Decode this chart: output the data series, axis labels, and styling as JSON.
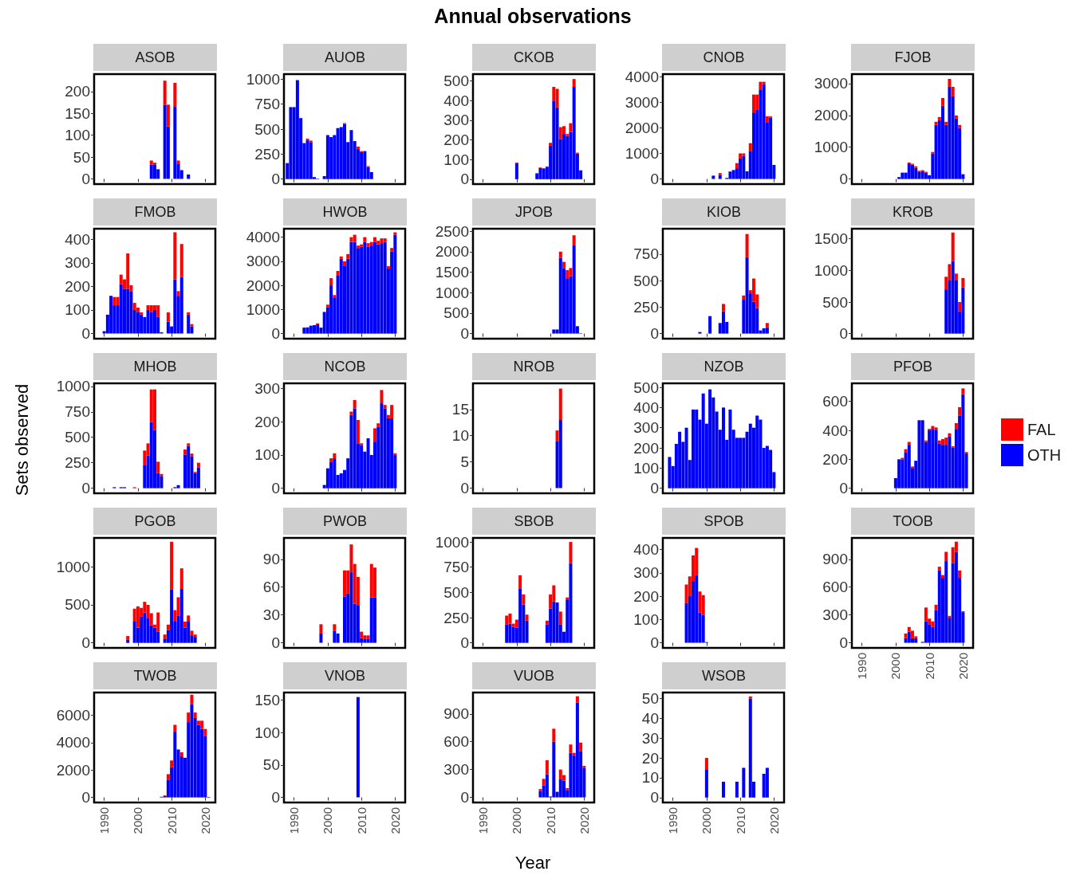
{
  "chart_data": [
    {
      "type": "bar",
      "title": "ASOB",
      "stacked": true,
      "tick_labels": "y",
      "x": [
        2004,
        2005,
        2006,
        2008,
        2009,
        2011,
        2012,
        2013,
        2015
      ],
      "xlim": [
        1987,
        2023
      ],
      "xticks": [
        1990,
        2000,
        2010,
        2020
      ],
      "ylim": [
        -12,
        240
      ],
      "yticks": [
        0,
        50,
        100,
        150,
        200
      ],
      "series": [
        {
          "color": "#0000ff",
          "values": [
            33,
            33,
            22,
            170,
            120,
            165,
            35,
            20,
            10
          ]
        },
        {
          "color": "#ff0000",
          "values": [
            9,
            4,
            null,
            55,
            50,
            55,
            7,
            null,
            null
          ]
        }
      ]
    },
    {
      "type": "bar",
      "title": "AUOB",
      "stacked": true,
      "tick_labels": "y",
      "x": [
        1988,
        1989,
        1990,
        1991,
        1992,
        1993,
        1994,
        1995,
        1996,
        1997,
        1999,
        2000,
        2001,
        2002,
        2003,
        2004,
        2005,
        2006,
        2007,
        2008,
        2009,
        2010,
        2011,
        2012,
        2013
      ],
      "xlim": [
        1987,
        2023
      ],
      "xticks": [
        1990,
        2000,
        2010,
        2020
      ],
      "ylim": [
        -50,
        1050
      ],
      "yticks": [
        0,
        250,
        500,
        750,
        1000
      ],
      "series": [
        {
          "color": "#0000ff",
          "values": [
            160,
            720,
            720,
            990,
            610,
            360,
            390,
            370,
            20,
            5,
            30,
            440,
            420,
            440,
            510,
            520,
            550,
            370,
            490,
            380,
            300,
            270,
            280,
            120,
            70
          ]
        },
        {
          "color": "#ff0000",
          "values": [
            null,
            null,
            null,
            null,
            null,
            null,
            15,
            15,
            null,
            null,
            null,
            null,
            null,
            null,
            null,
            null,
            10,
            null,
            null,
            null,
            25,
            10,
            null,
            10,
            null
          ]
        }
      ]
    },
    {
      "type": "bar",
      "title": "CKOB",
      "stacked": true,
      "tick_labels": "y",
      "annotations": [
        "Annual observations"
      ],
      "x": [
        2000,
        2006,
        2007,
        2008,
        2009,
        2010,
        2011,
        2012,
        2013,
        2014,
        2015,
        2016,
        2017,
        2018,
        2019
      ],
      "xlim": [
        1987,
        2023
      ],
      "xticks": [
        1990,
        2000,
        2010,
        2020
      ],
      "ylim": [
        -25,
        535
      ],
      "yticks": [
        0,
        100,
        200,
        300,
        400,
        500
      ],
      "series": [
        {
          "color": "#0000ff",
          "values": [
            82,
            30,
            57,
            55,
            60,
            170,
            400,
            365,
            205,
            230,
            220,
            240,
            470,
            130,
            45
          ]
        },
        {
          "color": "#ff0000",
          "values": [
            3,
            null,
            3,
            null,
            5,
            15,
            70,
            95,
            60,
            40,
            10,
            45,
            40,
            5,
            null
          ]
        }
      ]
    },
    {
      "type": "bar",
      "title": "CNOB",
      "stacked": true,
      "tick_labels": "y",
      "x": [
        2002,
        2004,
        2006,
        2007,
        2008,
        2009,
        2010,
        2011,
        2012,
        2013,
        2014,
        2015,
        2016,
        2017,
        2018,
        2019,
        2020
      ],
      "xlim": [
        1987,
        2023
      ],
      "xticks": [
        1990,
        2000,
        2010,
        2020
      ],
      "ylim": [
        -200,
        4100
      ],
      "yticks": [
        0,
        1000,
        2000,
        3000,
        4000
      ],
      "series": [
        {
          "color": "#0000ff",
          "values": [
            130,
            150,
            40,
            270,
            350,
            420,
            800,
            900,
            300,
            1100,
            2600,
            2700,
            3500,
            3700,
            2200,
            2400,
            550
          ]
        },
        {
          "color": "#ff0000",
          "values": [
            null,
            80,
            null,
            30,
            null,
            200,
            200,
            100,
            null,
            300,
            700,
            600,
            300,
            100,
            250,
            50,
            null
          ]
        }
      ]
    },
    {
      "type": "bar",
      "title": "FJOB",
      "stacked": true,
      "tick_labels": "y",
      "x": [
        2001,
        2002,
        2003,
        2004,
        2005,
        2006,
        2007,
        2008,
        2009,
        2010,
        2011,
        2012,
        2013,
        2014,
        2015,
        2016,
        2017,
        2018,
        2019,
        2020
      ],
      "xlim": [
        1987,
        2023
      ],
      "xticks": [
        1990,
        2000,
        2010,
        2020
      ],
      "ylim": [
        -160,
        3300
      ],
      "yticks": [
        0,
        1000,
        2000,
        3000
      ],
      "series": [
        {
          "color": "#0000ff",
          "values": [
            60,
            200,
            200,
            490,
            450,
            350,
            220,
            250,
            200,
            120,
            800,
            1700,
            1850,
            2300,
            1700,
            2900,
            2600,
            1900,
            1600,
            150
          ]
        },
        {
          "color": "#ff0000",
          "values": [
            null,
            null,
            null,
            30,
            30,
            50,
            40,
            30,
            30,
            null,
            50,
            100,
            100,
            250,
            100,
            250,
            300,
            100,
            100,
            null
          ]
        }
      ]
    },
    {
      "type": "bar",
      "title": "FMOB",
      "stacked": true,
      "tick_labels": "y",
      "x": [
        1990,
        1991,
        1992,
        1993,
        1994,
        1995,
        1996,
        1997,
        1998,
        1999,
        2000,
        2001,
        2002,
        2003,
        2004,
        2005,
        2006,
        2007,
        2009,
        2010,
        2011,
        2012,
        2013,
        2015,
        2016
      ],
      "xlim": [
        1987,
        2023
      ],
      "xticks": [
        1990,
        2000,
        2010,
        2020
      ],
      "ylim": [
        -22,
        445
      ],
      "yticks": [
        0,
        100,
        200,
        300,
        400
      ],
      "series": [
        {
          "color": "#0000ff",
          "values": [
            10,
            80,
            160,
            120,
            120,
            210,
            190,
            190,
            180,
            100,
            90,
            80,
            70,
            100,
            90,
            100,
            70,
            5,
            50,
            30,
            230,
            160,
            240,
            80,
            30
          ]
        },
        {
          "color": "#ff0000",
          "values": [
            null,
            null,
            null,
            35,
            35,
            40,
            40,
            150,
            25,
            30,
            20,
            10,
            null,
            20,
            30,
            20,
            50,
            null,
            40,
            null,
            200,
            20,
            140,
            10,
            10
          ]
        }
      ]
    },
    {
      "type": "bar",
      "title": "HWOB",
      "stacked": true,
      "tick_labels": "y",
      "x": [
        1993,
        1994,
        1995,
        1996,
        1997,
        1998,
        1999,
        2000,
        2001,
        2002,
        2003,
        2004,
        2005,
        2006,
        2007,
        2008,
        2009,
        2010,
        2011,
        2012,
        2013,
        2014,
        2015,
        2016,
        2017,
        2018,
        2019,
        2020
      ],
      "xlim": [
        1987,
        2023
      ],
      "xticks": [
        1990,
        2000,
        2010,
        2020
      ],
      "ylim": [
        -210,
        4350
      ],
      "yticks": [
        0,
        1000,
        2000,
        3000,
        4000
      ],
      "series": [
        {
          "color": "#0000ff",
          "values": [
            250,
            260,
            330,
            350,
            390,
            250,
            900,
            1100,
            2000,
            1500,
            2400,
            3100,
            2800,
            3100,
            3800,
            3800,
            3550,
            3600,
            3800,
            3600,
            3650,
            3800,
            3700,
            3750,
            3800,
            2700,
            3400,
            4100
          ]
        },
        {
          "color": "#ff0000",
          "values": [
            null,
            null,
            null,
            null,
            40,
            null,
            null,
            100,
            300,
            100,
            200,
            100,
            200,
            200,
            200,
            300,
            100,
            100,
            200,
            150,
            150,
            200,
            150,
            200,
            150,
            100,
            150,
            100
          ]
        }
      ]
    },
    {
      "type": "bar",
      "title": "JPOB",
      "stacked": true,
      "tick_labels": "y",
      "x": [
        2011,
        2012,
        2013,
        2014,
        2015,
        2016,
        2017,
        2018,
        2019
      ],
      "xlim": [
        1987,
        2023
      ],
      "xticks": [
        1990,
        2000,
        2010,
        2020
      ],
      "ylim": [
        -125,
        2560
      ],
      "yticks": [
        0,
        500,
        1000,
        1500,
        2000,
        2500
      ],
      "series": [
        {
          "color": "#0000ff",
          "values": [
            100,
            100,
            1850,
            1600,
            1350,
            1400,
            2150,
            180,
            10
          ]
        },
        {
          "color": "#ff0000",
          "values": [
            null,
            null,
            150,
            150,
            200,
            200,
            250,
            null,
            null
          ]
        }
      ]
    },
    {
      "type": "bar",
      "title": "KIOB",
      "stacked": true,
      "tick_labels": "y",
      "x": [
        1998,
        2001,
        2004,
        2005,
        2006,
        2011,
        2012,
        2013,
        2014,
        2015,
        2016,
        2017,
        2018
      ],
      "xlim": [
        1987,
        2023
      ],
      "xticks": [
        1990,
        2000,
        2010,
        2020
      ],
      "ylim": [
        -48,
        990
      ],
      "yticks": [
        0,
        250,
        500,
        750
      ],
      "series": [
        {
          "color": "#0000ff",
          "values": [
            15,
            165,
            100,
            210,
            110,
            320,
            720,
            380,
            300,
            240,
            30,
            50,
            60
          ]
        },
        {
          "color": "#ff0000",
          "values": [
            null,
            null,
            null,
            70,
            null,
            40,
            220,
            30,
            220,
            130,
            null,
            null,
            40
          ]
        }
      ]
    },
    {
      "type": "bar",
      "title": "KROB",
      "stacked": true,
      "tick_labels": "y",
      "x": [
        2015,
        2016,
        2017,
        2018,
        2019,
        2020
      ],
      "xlim": [
        1987,
        2023
      ],
      "xticks": [
        1990,
        2000,
        2010,
        2020
      ],
      "ylim": [
        -80,
        1660
      ],
      "yticks": [
        0,
        500,
        1000,
        1500
      ],
      "series": [
        {
          "color": "#0000ff",
          "values": [
            700,
            850,
            1150,
            850,
            350,
            730
          ]
        },
        {
          "color": "#ff0000",
          "values": [
            200,
            250,
            450,
            100,
            150,
            150
          ]
        }
      ]
    },
    {
      "type": "bar",
      "title": "MHOB",
      "stacked": true,
      "tick_labels": "y",
      "ylabel": "Sets observed",
      "x": [
        1993,
        1995,
        1996,
        1999,
        2002,
        2003,
        2004,
        2005,
        2006,
        2007,
        2011,
        2012,
        2014,
        2015,
        2016,
        2017,
        2018
      ],
      "xlim": [
        1987,
        2023
      ],
      "xticks": [
        1990,
        2000,
        2010,
        2020
      ],
      "ylim": [
        -50,
        1030
      ],
      "yticks": [
        0,
        250,
        500,
        750,
        1000
      ],
      "series": [
        {
          "color": "#0000ff",
          "values": [
            10,
            10,
            10,
            null,
            230,
            320,
            650,
            570,
            150,
            120,
            10,
            30,
            330,
            415,
            315,
            150,
            205
          ]
        },
        {
          "color": "#ff0000",
          "values": [
            null,
            null,
            null,
            10,
            140,
            120,
            320,
            400,
            110,
            20,
            null,
            null,
            50,
            25,
            25,
            10,
            45
          ]
        }
      ]
    },
    {
      "type": "bar",
      "title": "NCOB",
      "stacked": true,
      "tick_labels": "y",
      "x": [
        1999,
        2000,
        2001,
        2002,
        2003,
        2004,
        2005,
        2006,
        2007,
        2008,
        2009,
        2010,
        2011,
        2012,
        2013,
        2014,
        2015,
        2016,
        2017,
        2018,
        2019,
        2020
      ],
      "xlim": [
        1987,
        2023
      ],
      "xticks": [
        1990,
        2000,
        2010,
        2020
      ],
      "ylim": [
        -15,
        315
      ],
      "yticks": [
        0,
        100,
        200,
        300
      ],
      "series": [
        {
          "color": "#0000ff",
          "values": [
            10,
            60,
            80,
            90,
            40,
            45,
            55,
            90,
            220,
            240,
            135,
            130,
            110,
            150,
            100,
            140,
            185,
            255,
            240,
            210,
            210,
            100
          ]
        },
        {
          "color": "#ff0000",
          "values": [
            null,
            null,
            10,
            15,
            null,
            null,
            null,
            null,
            10,
            25,
            70,
            5,
            null,
            null,
            null,
            40,
            10,
            40,
            10,
            10,
            40,
            5
          ]
        }
      ]
    },
    {
      "type": "bar",
      "title": "NROB",
      "stacked": true,
      "tick_labels": "y",
      "x": [
        2012,
        2013
      ],
      "xlim": [
        1987,
        2023
      ],
      "xticks": [
        1990,
        2000,
        2010,
        2020
      ],
      "ylim": [
        -1,
        20
      ],
      "yticks": [
        0,
        5,
        10,
        15
      ],
      "series": [
        {
          "color": "#0000ff",
          "values": [
            9,
            13
          ]
        },
        {
          "color": "#ff0000",
          "values": [
            2,
            6
          ]
        }
      ]
    },
    {
      "type": "bar",
      "title": "NZOB",
      "stacked": true,
      "tick_labels": "y",
      "x": [
        1989,
        1990,
        1991,
        1992,
        1993,
        1994,
        1995,
        1996,
        1997,
        1998,
        1999,
        2000,
        2001,
        2002,
        2003,
        2004,
        2005,
        2006,
        2007,
        2008,
        2009,
        2010,
        2011,
        2012,
        2013,
        2014,
        2015,
        2016,
        2017,
        2018,
        2019,
        2020
      ],
      "xlim": [
        1987,
        2023
      ],
      "xticks": [
        1990,
        2000,
        2010,
        2020
      ],
      "ylim": [
        -25,
        520
      ],
      "yticks": [
        0,
        100,
        200,
        300,
        400,
        500
      ],
      "series": [
        {
          "color": "#0000ff",
          "values": [
            155,
            110,
            220,
            280,
            230,
            300,
            140,
            390,
            390,
            340,
            470,
            320,
            490,
            450,
            380,
            290,
            400,
            240,
            390,
            290,
            250,
            250,
            250,
            280,
            320,
            300,
            360,
            340,
            200,
            210,
            190,
            80
          ]
        }
      ]
    },
    {
      "type": "bar",
      "title": "PFOB",
      "stacked": true,
      "tick_labels": "y",
      "legend": "right",
      "x": [
        2000,
        2001,
        2002,
        2003,
        2004,
        2005,
        2006,
        2007,
        2008,
        2009,
        2010,
        2011,
        2012,
        2013,
        2014,
        2015,
        2016,
        2017,
        2018,
        2019,
        2020,
        2021
      ],
      "xlim": [
        1987,
        2023
      ],
      "xticks": [
        1990,
        2000,
        2010,
        2020
      ],
      "ylim": [
        -35,
        725
      ],
      "yticks": [
        0,
        200,
        400,
        600
      ],
      "series": [
        {
          "name": "OTH",
          "color": "#0000ff",
          "values": [
            70,
            200,
            200,
            250,
            300,
            140,
            190,
            470,
            470,
            320,
            400,
            410,
            400,
            310,
            300,
            300,
            360,
            280,
            410,
            500,
            650,
            240
          ]
        },
        {
          "name": "FAL",
          "color": "#ff0000",
          "values": [
            null,
            null,
            10,
            20,
            20,
            10,
            null,
            null,
            null,
            10,
            10,
            20,
            20,
            20,
            40,
            50,
            20,
            10,
            40,
            60,
            40,
            10
          ]
        }
      ]
    },
    {
      "type": "bar",
      "title": "PGOB",
      "stacked": true,
      "tick_labels": "y",
      "x": [
        1997,
        1999,
        2000,
        2001,
        2002,
        2003,
        2004,
        2005,
        2006,
        2008,
        2009,
        2010,
        2011,
        2012,
        2013,
        2014,
        2015,
        2016,
        2017
      ],
      "xlim": [
        1987,
        2023
      ],
      "xticks": [
        1990,
        2000,
        2010,
        2020
      ],
      "ylim": [
        -66,
        1380
      ],
      "yticks": [
        0,
        500,
        1000
      ],
      "series": [
        {
          "color": "#0000ff",
          "values": [
            40,
            280,
            200,
            350,
            400,
            330,
            230,
            200,
            150,
            50,
            170,
            700,
            280,
            360,
            710,
            200,
            280,
            100,
            80
          ]
        },
        {
          "color": "#ff0000",
          "values": [
            50,
            170,
            280,
            110,
            140,
            170,
            160,
            40,
            250,
            60,
            70,
            630,
            150,
            240,
            270,
            80,
            80,
            60,
            30
          ]
        }
      ]
    },
    {
      "type": "bar",
      "title": "PWOB",
      "stacked": true,
      "tick_labels": "y",
      "x": [
        1998,
        2002,
        2003,
        2005,
        2006,
        2007,
        2008,
        2009,
        2010,
        2011,
        2012,
        2013,
        2014
      ],
      "xlim": [
        1987,
        2023
      ],
      "xticks": [
        1990,
        2000,
        2010,
        2020
      ],
      "ylim": [
        -5.5,
        113
      ],
      "yticks": [
        0,
        30,
        60,
        90
      ],
      "series": [
        {
          "color": "#0000ff",
          "values": [
            10,
            13,
            10,
            50,
            53,
            76,
            42,
            40,
            5,
            4,
            4,
            49,
            49
          ]
        },
        {
          "color": "#ff0000",
          "values": [
            10,
            7,
            null,
            28,
            25,
            30,
            43,
            31,
            7,
            4,
            4,
            36,
            32
          ]
        }
      ]
    },
    {
      "type": "bar",
      "title": "SBOB",
      "stacked": true,
      "tick_labels": "y",
      "x": [
        1997,
        1998,
        1999,
        2000,
        2001,
        2002,
        2003,
        2009,
        2010,
        2011,
        2012,
        2013,
        2014,
        2015,
        2016
      ],
      "xlim": [
        1987,
        2023
      ],
      "xticks": [
        1990,
        2000,
        2010,
        2020
      ],
      "ylim": [
        -50,
        1040
      ],
      "yticks": [
        0,
        250,
        500,
        750,
        1000
      ],
      "series": [
        {
          "color": "#0000ff",
          "values": [
            180,
            190,
            160,
            150,
            540,
            380,
            220,
            180,
            340,
            410,
            400,
            180,
            110,
            430,
            790
          ]
        },
        {
          "color": "#ff0000",
          "values": [
            90,
            100,
            30,
            80,
            130,
            100,
            60,
            40,
            140,
            160,
            null,
            130,
            null,
            20,
            210
          ]
        }
      ]
    },
    {
      "type": "bar",
      "title": "SPOB",
      "stacked": true,
      "tick_labels": "y",
      "x": [
        1994,
        1995,
        1996,
        1997,
        1998,
        1999,
        2000
      ],
      "xlim": [
        1987,
        2023
      ],
      "xticks": [
        1990,
        2000,
        2010,
        2020
      ],
      "ylim": [
        -22,
        450
      ],
      "yticks": [
        0,
        100,
        200,
        300,
        400
      ],
      "series": [
        {
          "color": "#0000ff",
          "values": [
            170,
            200,
            265,
            290,
            130,
            120,
            3
          ]
        },
        {
          "color": "#ff0000",
          "values": [
            80,
            85,
            110,
            117,
            90,
            85,
            null
          ]
        }
      ]
    },
    {
      "type": "bar",
      "title": "TOOB",
      "stacked": true,
      "x": [
        2003,
        2004,
        2005,
        2006,
        2008,
        2009,
        2010,
        2011,
        2012,
        2013,
        2014,
        2015,
        2016,
        2017,
        2018,
        2019,
        2020
      ],
      "xlim": [
        1987,
        2023
      ],
      "xticks": [
        1990,
        2000,
        2010,
        2020
      ],
      "ylim": [
        -55,
        1130
      ],
      "yticks": [
        0,
        300,
        600,
        900
      ],
      "series": [
        {
          "color": "#0000ff",
          "values": [
            50,
            120,
            50,
            50,
            10,
            230,
            200,
            170,
            350,
            780,
            700,
            880,
            270,
            860,
            980,
            700,
            330
          ]
        },
        {
          "color": "#ff0000",
          "values": [
            50,
            50,
            80,
            20,
            null,
            150,
            60,
            60,
            60,
            40,
            30,
            100,
            20,
            170,
            110,
            80,
            10
          ]
        }
      ]
    },
    {
      "type": "bar",
      "title": "TWOB",
      "stacked": true,
      "x": [
        2007,
        2008,
        2009,
        2010,
        2011,
        2012,
        2013,
        2014,
        2015,
        2016,
        2017,
        2018,
        2019,
        2020,
        2021
      ],
      "xlim": [
        1987,
        2023
      ],
      "xticks": [
        1990,
        2000,
        2010,
        2020
      ],
      "ylim": [
        -370,
        7660
      ],
      "yticks": [
        0,
        2000,
        4000,
        6000
      ],
      "series": [
        {
          "color": "#0000ff",
          "values": [
            50,
            100,
            1300,
            2200,
            4800,
            3500,
            3000,
            2900,
            5500,
            6800,
            5800,
            5300,
            5000,
            4500,
            40
          ]
        },
        {
          "color": "#ff0000",
          "values": [
            null,
            50,
            400,
            500,
            500,
            null,
            300,
            null,
            700,
            700,
            400,
            300,
            600,
            500,
            null
          ]
        }
      ]
    },
    {
      "type": "bar",
      "title": "VNOB",
      "stacked": true,
      "x": [
        2009
      ],
      "xlim": [
        1987,
        2023
      ],
      "xticks": [
        1990,
        2000,
        2010,
        2020
      ],
      "ylim": [
        -8,
        162
      ],
      "yticks": [
        0,
        50,
        100,
        150
      ],
      "series": [
        {
          "color": "#0000ff",
          "values": [
            155
          ]
        }
      ]
    },
    {
      "type": "bar",
      "title": "VUOB",
      "stacked": true,
      "xlabel": "Year",
      "x": [
        2007,
        2008,
        2009,
        2010,
        2011,
        2012,
        2013,
        2014,
        2015,
        2016,
        2017,
        2018,
        2019,
        2020
      ],
      "xlim": [
        1987,
        2023
      ],
      "xticks": [
        1990,
        2000,
        2010,
        2020
      ],
      "ylim": [
        -55,
        1130
      ],
      "yticks": [
        0,
        300,
        600,
        900
      ],
      "series": [
        {
          "color": "#0000ff",
          "values": [
            70,
            130,
            250,
            10,
            600,
            60,
            200,
            180,
            80,
            480,
            450,
            1020,
            500,
            320
          ]
        },
        {
          "color": "#ff0000",
          "values": [
            20,
            70,
            150,
            null,
            140,
            null,
            100,
            60,
            20,
            90,
            30,
            70,
            90,
            20
          ]
        }
      ]
    },
    {
      "type": "bar",
      "title": "WSOB",
      "stacked": true,
      "x": [
        2000,
        2005,
        2009,
        2011,
        2013,
        2014,
        2017,
        2018
      ],
      "xlim": [
        1987,
        2023
      ],
      "xticks": [
        1990,
        2000,
        2010,
        2020
      ],
      "ylim": [
        -2.5,
        53
      ],
      "yticks": [
        0,
        10,
        20,
        30,
        40,
        50
      ],
      "series": [
        {
          "color": "#0000ff",
          "values": [
            14,
            8,
            8,
            15,
            50,
            8,
            12,
            15
          ]
        },
        {
          "color": "#ff0000",
          "values": [
            6,
            null,
            null,
            null,
            1,
            null,
            null,
            null
          ]
        }
      ]
    }
  ]
}
